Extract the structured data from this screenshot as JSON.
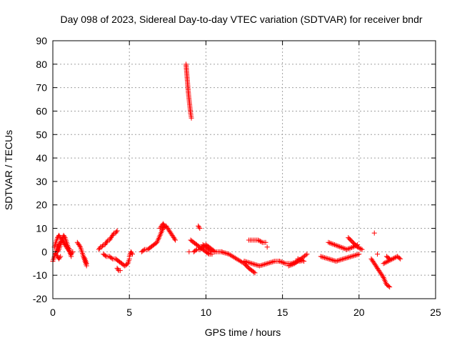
{
  "chart_data": {
    "type": "scatter",
    "title": "Day 098 of 2023, Sidereal Day-to-day VTEC variation (SDTVAR) for receiver bndr",
    "xlabel": "GPS time / hours",
    "ylabel": "SDTVAR / TECUs",
    "xlim": [
      0,
      25
    ],
    "ylim": [
      -20,
      90
    ],
    "xticks": [
      0,
      5,
      10,
      15,
      20,
      25
    ],
    "yticks": [
      -20,
      -10,
      0,
      10,
      20,
      30,
      40,
      50,
      60,
      70,
      80,
      90
    ],
    "grid": true,
    "marker": "+",
    "color": "#ff0000",
    "tracks": [
      {
        "x": [
          0.0,
          0.1,
          0.2,
          0.3,
          0.4,
          0.5,
          0.6,
          0.7,
          0.8,
          0.9,
          1.0,
          1.1,
          1.2
        ],
        "y": [
          -4,
          -2,
          0,
          2,
          3,
          4,
          5,
          4,
          3,
          2,
          1,
          0,
          -2
        ]
      },
      {
        "x": [
          0.1,
          0.2,
          0.3,
          0.4,
          0.5,
          0.6,
          0.7,
          0.8,
          0.9,
          1.0,
          1.1,
          1.2,
          1.3
        ],
        "y": [
          2,
          4,
          6,
          7,
          6,
          5,
          4,
          3,
          2,
          1,
          0,
          -1,
          0
        ]
      },
      {
        "x": [
          0.3,
          0.4,
          0.5,
          0.6,
          0.7,
          0.8,
          0.9,
          1.0,
          1.1
        ],
        "y": [
          0,
          1,
          3,
          5,
          7,
          6,
          4,
          2,
          1
        ]
      },
      {
        "x": [
          0.2,
          0.3,
          0.4,
          0.5
        ],
        "y": [
          -1,
          -2,
          -3,
          -2
        ]
      },
      {
        "x": [
          1.6,
          1.7,
          1.8,
          1.9,
          2.0,
          2.1,
          2.2
        ],
        "y": [
          4,
          3,
          2,
          0,
          -2,
          -4,
          -6
        ]
      },
      {
        "x": [
          2.0,
          2.1,
          2.2
        ],
        "y": [
          -2,
          -3,
          -5
        ]
      },
      {
        "x": [
          3.0,
          3.1,
          3.2,
          3.3,
          3.4,
          3.5,
          3.6,
          3.7,
          3.8,
          3.9,
          4.0,
          4.1,
          4.2
        ],
        "y": [
          1,
          2,
          2,
          3,
          3,
          4,
          5,
          5,
          6,
          7,
          8,
          8,
          9
        ]
      },
      {
        "x": [
          3.3,
          3.5,
          3.7,
          3.9,
          4.1,
          4.3,
          4.5,
          4.7,
          4.9,
          5.0
        ],
        "y": [
          -1,
          -2,
          -2,
          -3,
          -3,
          -4,
          -5,
          -6,
          -5,
          -3
        ]
      },
      {
        "x": [
          4.2,
          4.3,
          4.4
        ],
        "y": [
          -7,
          -8,
          -8
        ]
      },
      {
        "x": [
          5.0,
          5.1,
          5.2
        ],
        "y": [
          -2,
          0,
          -1
        ]
      },
      {
        "x": [
          5.8,
          6.0,
          6.2,
          6.4,
          6.6,
          6.8,
          7.0,
          7.2,
          7.4,
          7.6,
          7.8,
          8.0
        ],
        "y": [
          0,
          1,
          1,
          2,
          3,
          4,
          7,
          10,
          11,
          9,
          7,
          5
        ]
      },
      {
        "x": [
          7.0,
          7.1,
          7.2,
          7.3
        ],
        "y": [
          10,
          11,
          12,
          11
        ]
      },
      {
        "x": [
          8.7,
          8.75,
          8.8,
          8.85,
          8.9,
          8.95,
          9.0,
          9.05
        ],
        "y": [
          80,
          76,
          72,
          68,
          65,
          62,
          59,
          57
        ]
      },
      {
        "x": [
          8.9
        ],
        "y": [
          0
        ]
      },
      {
        "x": [
          9.5,
          9.6
        ],
        "y": [
          11,
          10
        ]
      },
      {
        "x": [
          9.0,
          9.2,
          9.4,
          9.6,
          9.8,
          10.0,
          10.2,
          10.4
        ],
        "y": [
          5,
          4,
          3,
          2,
          1,
          0,
          -1,
          -1
        ]
      },
      {
        "x": [
          9.2,
          9.4,
          9.6,
          9.8,
          10.0,
          10.2,
          10.4,
          10.6,
          10.8,
          11.0
        ],
        "y": [
          0,
          1,
          1,
          2,
          3,
          2,
          1,
          0,
          0,
          0
        ]
      },
      {
        "x": [
          9.8,
          10.0,
          10.2,
          10.4
        ],
        "y": [
          3,
          2,
          1,
          0
        ]
      },
      {
        "x": [
          11.0,
          11.5,
          12.0,
          12.5,
          12.8,
          13.0,
          13.2
        ],
        "y": [
          0,
          -1,
          -3,
          -5,
          -7,
          -8,
          -9
        ]
      },
      {
        "x": [
          12.5,
          13.0,
          13.5,
          14.0,
          14.5,
          14.8
        ],
        "y": [
          -4,
          -5,
          -6,
          -5,
          -4,
          -4
        ]
      },
      {
        "x": [
          12.8,
          13.1,
          13.4,
          13.7,
          13.9
        ],
        "y": [
          5,
          5,
          5,
          4,
          4
        ]
      },
      {
        "x": [
          14.0
        ],
        "y": [
          2
        ]
      },
      {
        "x": [
          14.8,
          15.2,
          15.6,
          16.0,
          16.2
        ],
        "y": [
          -4,
          -5,
          -5,
          -4,
          -4
        ]
      },
      {
        "x": [
          15.4,
          15.8,
          16.2,
          16.6
        ],
        "y": [
          -6,
          -5,
          -3,
          -1
        ]
      },
      {
        "x": [
          16.0,
          16.4
        ],
        "y": [
          -3,
          -4
        ]
      },
      {
        "x": [
          17.5,
          18.0,
          18.5,
          19.0,
          19.5,
          20.0
        ],
        "y": [
          -2,
          -3,
          -4,
          -3,
          -2,
          -1
        ]
      },
      {
        "x": [
          18.0,
          18.4,
          18.8,
          19.2,
          19.6,
          19.9
        ],
        "y": [
          4,
          3,
          2,
          1,
          2,
          3
        ]
      },
      {
        "x": [
          19.3,
          19.6,
          19.9,
          20.2
        ],
        "y": [
          6,
          4,
          2,
          1
        ]
      },
      {
        "x": [
          21.0
        ],
        "y": [
          8
        ]
      },
      {
        "x": [
          21.2
        ],
        "y": [
          -1
        ]
      },
      {
        "x": [
          20.8,
          21.0,
          21.2,
          21.4,
          21.6,
          21.8,
          22.0
        ],
        "y": [
          -3,
          -5,
          -7,
          -9,
          -11,
          -14,
          -15
        ]
      },
      {
        "x": [
          21.6,
          21.9,
          22.2,
          22.5,
          22.7
        ],
        "y": [
          -5,
          -4,
          -3,
          -2,
          -3
        ]
      },
      {
        "x": [
          21.8,
          22.0
        ],
        "y": [
          -2,
          -3
        ]
      }
    ]
  }
}
